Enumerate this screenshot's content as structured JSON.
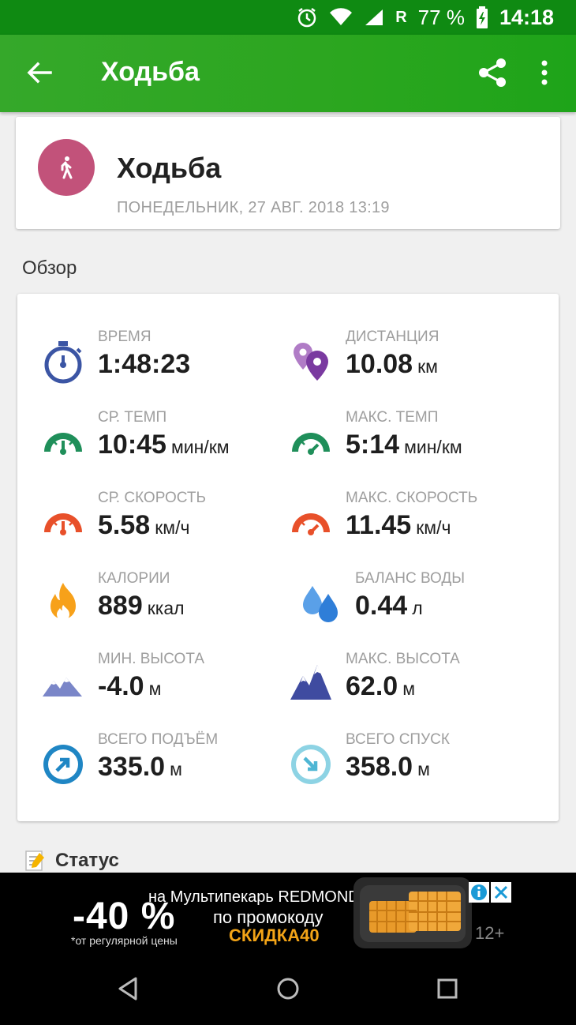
{
  "status_bar": {
    "roaming": "R",
    "battery": "77 %",
    "time": "14:18"
  },
  "app_bar": {
    "title": "Ходьба"
  },
  "header": {
    "activity": "Ходьба",
    "date": "ПОНЕДЕЛЬНИК, 27 АВГ. 2018 13:19",
    "avatar_color": "#c2527a"
  },
  "overview": {
    "title": "Обзор",
    "metrics": [
      {
        "label": "ВРЕМЯ",
        "value": "1:48:23",
        "unit": "",
        "icon": "stopwatch-icon"
      },
      {
        "label": "ДИСТАНЦИЯ",
        "value": "10.08",
        "unit": "км",
        "icon": "map-pins-icon"
      },
      {
        "label": "СР. ТЕМП",
        "value": "10:45",
        "unit": "мин/км",
        "icon": "avg-pace-gauge-icon"
      },
      {
        "label": "МАКС. ТЕМП",
        "value": "5:14",
        "unit": "мин/км",
        "icon": "max-pace-gauge-icon"
      },
      {
        "label": "СР. СКОРОСТЬ",
        "value": "5.58",
        "unit": "км/ч",
        "icon": "avg-speed-gauge-icon"
      },
      {
        "label": "МАКС. СКОРОСТЬ",
        "value": "11.45",
        "unit": "км/ч",
        "icon": "max-speed-gauge-icon"
      },
      {
        "label": "КАЛОРИИ",
        "value": "889",
        "unit": "ккал",
        "icon": "flame-icon"
      },
      {
        "label": "БАЛАНС ВОДЫ",
        "value": "0.44",
        "unit": "л",
        "icon": "water-drops-icon"
      },
      {
        "label": "МИН. ВЫСОТА",
        "value": "-4.0",
        "unit": "м",
        "icon": "min-altitude-mountain-icon"
      },
      {
        "label": "МАКС. ВЫСОТА",
        "value": "62.0",
        "unit": "м",
        "icon": "max-altitude-mountain-icon"
      },
      {
        "label": "ВСЕГО ПОДЪЁМ",
        "value": "335.0",
        "unit": "м",
        "icon": "ascent-arrow-icon"
      },
      {
        "label": "ВСЕГО СПУСК",
        "value": "358.0",
        "unit": "м",
        "icon": "descent-arrow-icon"
      }
    ]
  },
  "status_section": {
    "label": "Статус",
    "icon": "memo-icon"
  },
  "ad": {
    "discount": "-40 %",
    "discount_note": "*от регулярной цены",
    "line1": "на Мультипекарь REDMOND",
    "line2": "по промокоду",
    "promo_code": "СКИДКА40",
    "age_rating": "12+"
  },
  "colors": {
    "app_bar": "#2ba61f",
    "status_bar": "#0f8a12",
    "pace_green": "#1f8f5a",
    "speed_orange": "#e8502a",
    "stopwatch_blue": "#3b55a4"
  }
}
